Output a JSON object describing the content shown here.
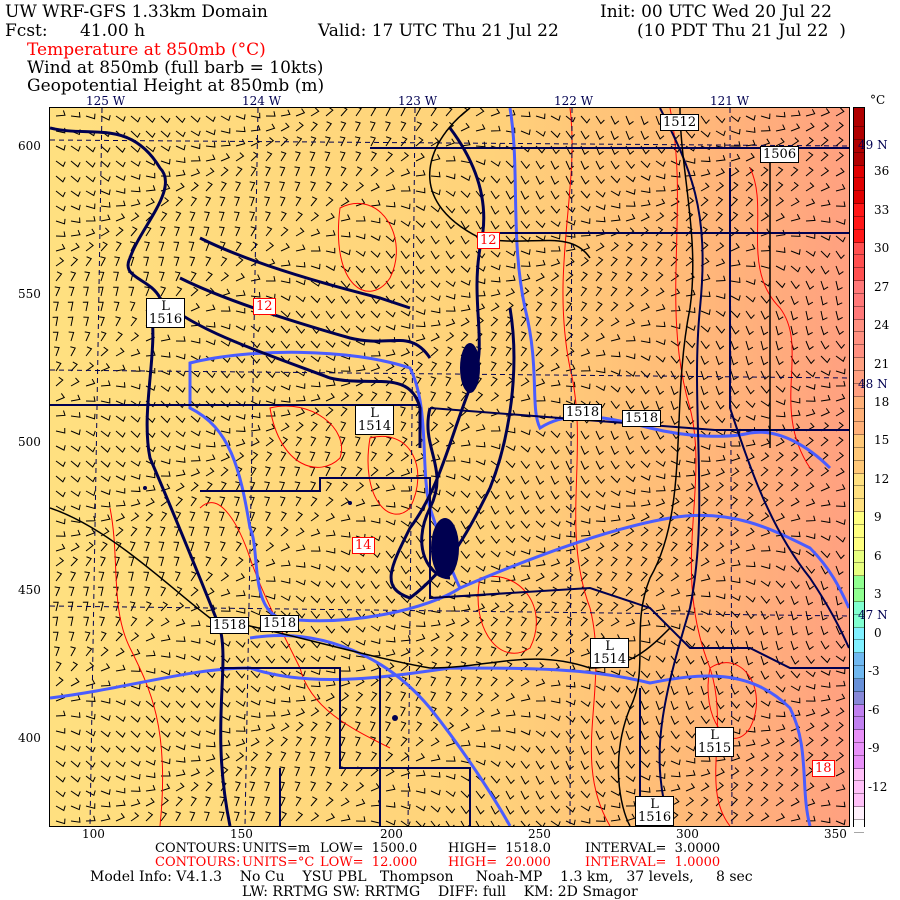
{
  "header": {
    "domain_title": "UW WRF-GFS 1.33km Domain",
    "init": "Init: 00 UTC Wed 20 Jul 22",
    "fcst_label": "Fcst:",
    "fcst_value": "41.00 h",
    "valid": "Valid: 17 UTC Thu 21 Jul 22",
    "valid_local": "(10 PDT Thu 21 Jul 22  )",
    "field_temperature": "Temperature at 850mb (°C)",
    "field_wind": "Wind at 850mb (full barb = 10kts)",
    "field_height": "Geopotential Height at 850mb (m)"
  },
  "map": {
    "longitude_labels": [
      "125 W",
      "124 W",
      "123 W",
      "122 W",
      "121 W"
    ],
    "latitude_labels": [
      "49 N",
      "48 N",
      "47 N"
    ],
    "x_ticks": [
      "100",
      "150",
      "200",
      "250",
      "300",
      "350"
    ],
    "y_ticks": [
      "600",
      "550",
      "500",
      "450",
      "400"
    ],
    "height_labels": [
      {
        "text_l": "L",
        "text": "1516"
      },
      {
        "text_l": "",
        "text": "1512"
      },
      {
        "text_l": "",
        "text": "1506"
      },
      {
        "text_l": "L",
        "text": "1514"
      },
      {
        "text_l": "",
        "text": "1518"
      },
      {
        "text_l": "",
        "text": "1518"
      },
      {
        "text_l": "",
        "text": "1518"
      },
      {
        "text_l": "",
        "text": "1518"
      },
      {
        "text_l": "L",
        "text": "1514"
      },
      {
        "text_l": "L",
        "text": "1515"
      },
      {
        "text_l": "L",
        "text": "1516"
      }
    ],
    "temperature_labels": [
      "12",
      "12",
      "14",
      "18"
    ],
    "colors": {
      "height_contour": "#000000",
      "temperature_contour": "#ff0000",
      "coastline": "#000050",
      "rivers": "#4a5cff",
      "fill_cool": "#ffe080",
      "fill_warm": "#ffa880"
    }
  },
  "colorbar": {
    "unit": "°C",
    "labels": [
      "36",
      "33",
      "30",
      "27",
      "24",
      "21",
      "18",
      "15",
      "12",
      "9",
      "6",
      "3",
      "0",
      "-3",
      "-6",
      "-9",
      "-12"
    ],
    "label_values": [
      36,
      33,
      30,
      27,
      24,
      21,
      18,
      15,
      12,
      9,
      6,
      3,
      0,
      -3,
      -6,
      -9,
      -12
    ],
    "color_stops": [
      [
        41,
        "#b00000"
      ],
      [
        36,
        "#e00000"
      ],
      [
        33,
        "#ff1818"
      ],
      [
        30,
        "#ff5050"
      ],
      [
        27,
        "#ff7878"
      ],
      [
        24,
        "#ff9080"
      ],
      [
        21,
        "#ffa080"
      ],
      [
        18,
        "#ffb078"
      ],
      [
        15,
        "#ffc878"
      ],
      [
        12,
        "#ffe080"
      ],
      [
        9,
        "#ffff80"
      ],
      [
        6,
        "#e8ff80"
      ],
      [
        4,
        "#90ff90"
      ],
      [
        2,
        "#80ffd0"
      ],
      [
        0,
        "#80f0ff"
      ],
      [
        -2,
        "#70b8f0"
      ],
      [
        -4,
        "#6890d8"
      ],
      [
        -5,
        "#8888d8"
      ],
      [
        -6,
        "#c080f0"
      ],
      [
        -8,
        "#e890f8"
      ],
      [
        -11,
        "#ffc0f8"
      ],
      [
        -14,
        "#fff0fc"
      ],
      [
        -15,
        "#ffffff"
      ]
    ]
  },
  "footer": {
    "height_contours": {
      "label": "CONTOURS:",
      "units": "UNITS=m",
      "low": "LOW=  1500.0",
      "high": "HIGH=  1518.0",
      "interval": "INTERVAL=  3.0000"
    },
    "temp_contours": {
      "label": "CONTOURS:",
      "units": "UNITS=°C",
      "low": "LOW=  12.000",
      "high": "HIGH=  20.000",
      "interval": "INTERVAL=  1.0000"
    },
    "model_info": "Model Info: V4.1.3    No Cu    YSU PBL   Thompson     Noah-MP    1.3 km,   37 levels,     8 sec",
    "model_info2": "LW: RRTMG SW: RRTMG    DIFF: full    KM: 2D Smagor"
  }
}
